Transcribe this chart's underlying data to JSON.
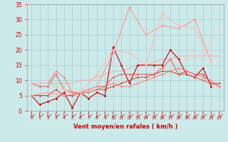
{
  "background_color": "#cceaea",
  "grid_color": "#aacccc",
  "xlabel": "Vent moyen/en rafales ( km/h )",
  "xlim": [
    -0.5,
    23.5
  ],
  "ylim": [
    0,
    35
  ],
  "yticks": [
    0,
    5,
    10,
    15,
    20,
    25,
    30,
    35
  ],
  "xticks": [
    0,
    1,
    2,
    3,
    4,
    5,
    6,
    7,
    8,
    9,
    10,
    11,
    12,
    13,
    14,
    15,
    16,
    17,
    18,
    19,
    20,
    21,
    22,
    23
  ],
  "lines": [
    {
      "x": [
        0,
        1,
        2,
        3,
        4,
        5,
        6,
        7,
        8,
        9,
        10,
        11,
        12,
        13,
        14,
        15,
        16,
        17,
        18,
        19,
        20,
        21,
        22
      ],
      "y": [
        5,
        2,
        3,
        4,
        6,
        1,
        6,
        4,
        6,
        5,
        21,
        15,
        9,
        15,
        15,
        15,
        15,
        20,
        17,
        12,
        11,
        14,
        8
      ],
      "color": "#cc0000",
      "linewidth": 0.8,
      "marker": "D",
      "markersize": 1.8
    },
    {
      "x": [
        0,
        1,
        2,
        3,
        4,
        5,
        6,
        7,
        8,
        9,
        10,
        11,
        12,
        13,
        14,
        15,
        16,
        17,
        18,
        19,
        20,
        21,
        22,
        23
      ],
      "y": [
        5,
        5,
        5,
        7,
        5,
        5,
        6,
        6,
        7,
        7,
        8,
        9,
        10,
        11,
        11,
        12,
        13,
        13,
        12,
        13,
        12,
        12,
        9,
        9
      ],
      "color": "#dd3333",
      "linewidth": 0.7,
      "marker": "D",
      "markersize": 1.5
    },
    {
      "x": [
        0,
        1,
        2,
        3,
        4,
        5,
        6,
        7,
        8,
        9,
        10,
        11,
        12,
        13,
        14,
        15,
        16,
        17,
        18,
        19,
        20,
        21,
        22,
        23
      ],
      "y": [
        9,
        8,
        8,
        12,
        7,
        6,
        6,
        7,
        8,
        8,
        11,
        12,
        12,
        12,
        12,
        12,
        14,
        17,
        12,
        12,
        11,
        10,
        9,
        8
      ],
      "color": "#ee5555",
      "linewidth": 0.7,
      "marker": "D",
      "markersize": 1.5
    },
    {
      "x": [
        0,
        1,
        2,
        3,
        4,
        5,
        6,
        7,
        8,
        9,
        10,
        11,
        12,
        13,
        14,
        15,
        16,
        17,
        18,
        19,
        20,
        21,
        22,
        23
      ],
      "y": [
        9,
        9,
        9,
        13,
        11,
        6,
        6,
        6,
        7,
        8,
        9,
        8,
        8,
        9,
        10,
        11,
        12,
        13,
        14,
        13,
        12,
        11,
        10,
        8
      ],
      "color": "#ff7777",
      "linewidth": 0.7,
      "marker": "D",
      "markersize": 1.5
    },
    {
      "x": [
        0,
        1,
        2,
        3,
        4,
        5,
        6,
        7,
        8,
        9,
        10,
        11,
        12,
        13,
        14,
        15,
        16,
        17,
        18,
        19,
        20,
        21,
        22,
        23
      ],
      "y": [
        9,
        9,
        9,
        9,
        9,
        9,
        10,
        10,
        11,
        12,
        13,
        13,
        14,
        15,
        15,
        16,
        17,
        17,
        18,
        18,
        18,
        18,
        18,
        18
      ],
      "color": "#ffaaaa",
      "linewidth": 0.8,
      "marker": null,
      "markersize": 0
    },
    {
      "x": [
        0,
        1,
        2,
        3,
        4,
        5,
        6,
        7,
        8,
        9,
        10,
        11,
        12,
        13,
        14,
        15,
        16,
        17,
        18,
        19,
        20,
        21,
        22,
        23
      ],
      "y": [
        5,
        5,
        5,
        6,
        6,
        6,
        7,
        7,
        8,
        8,
        9,
        10,
        11,
        12,
        12,
        13,
        14,
        15,
        16,
        17,
        18,
        19,
        22,
        27
      ],
      "color": "#ffcccc",
      "linewidth": 0.8,
      "marker": null,
      "markersize": 0
    },
    {
      "x": [
        0,
        2,
        4,
        6,
        8,
        10,
        12,
        14,
        16,
        18,
        20,
        22
      ],
      "y": [
        5,
        6,
        5,
        6,
        8,
        19,
        34,
        25,
        28,
        27,
        30,
        16
      ],
      "color": "#ff9999",
      "linewidth": 0.8,
      "marker": "D",
      "markersize": 1.8
    },
    {
      "x": [
        0,
        2,
        4,
        6,
        8,
        10,
        12,
        14,
        16,
        18,
        20,
        22
      ],
      "y": [
        9,
        9,
        7,
        6,
        12,
        20,
        19,
        15,
        32,
        28,
        27,
        16
      ],
      "color": "#ffbbbb",
      "linewidth": 0.8,
      "marker": "D",
      "markersize": 1.8
    }
  ],
  "axis_color": "#cc0000",
  "tick_color": "#cc0000",
  "xlabel_fontsize": 6.0,
  "xlabel_fontweight": "bold",
  "ytick_fontsize": 5.5,
  "xtick_fontsize": 4.5
}
